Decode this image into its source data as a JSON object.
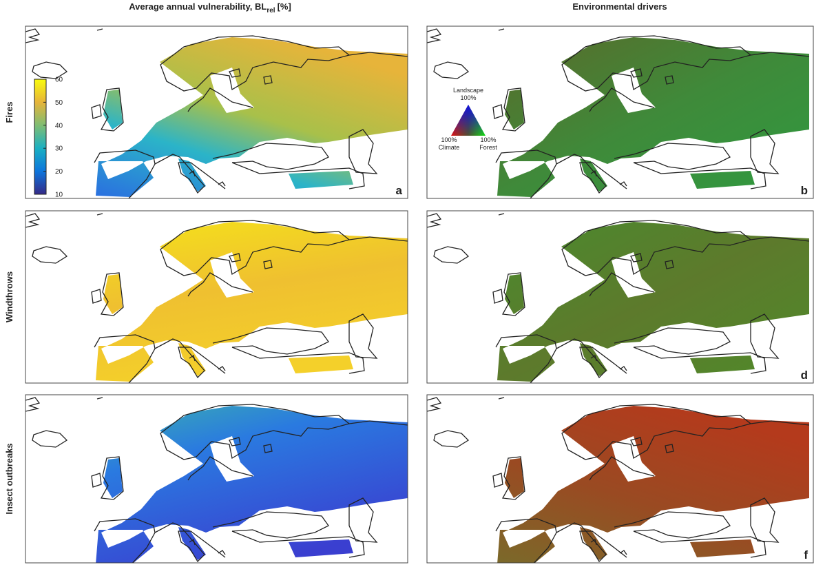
{
  "column_titles": {
    "left": {
      "main": "Average annual vulnerability, BL",
      "sub": "rel",
      "unit": "[%]"
    },
    "right": "Environmental drivers"
  },
  "row_labels": [
    "Fires",
    "Windthrows",
    "Insect outbreaks"
  ],
  "panel_letters": [
    "a",
    "b",
    "d",
    "f"
  ],
  "colorbar": {
    "lim": [
      10,
      60
    ],
    "ticks": [
      10,
      20,
      30,
      40,
      50,
      60
    ]
  },
  "ternary_legend": {
    "top": {
      "name": "Landscape",
      "pct": "100%"
    },
    "left": {
      "pct": "100%",
      "name": "Climate"
    },
    "right": {
      "pct": "100%",
      "name": "Forest"
    }
  }
}
